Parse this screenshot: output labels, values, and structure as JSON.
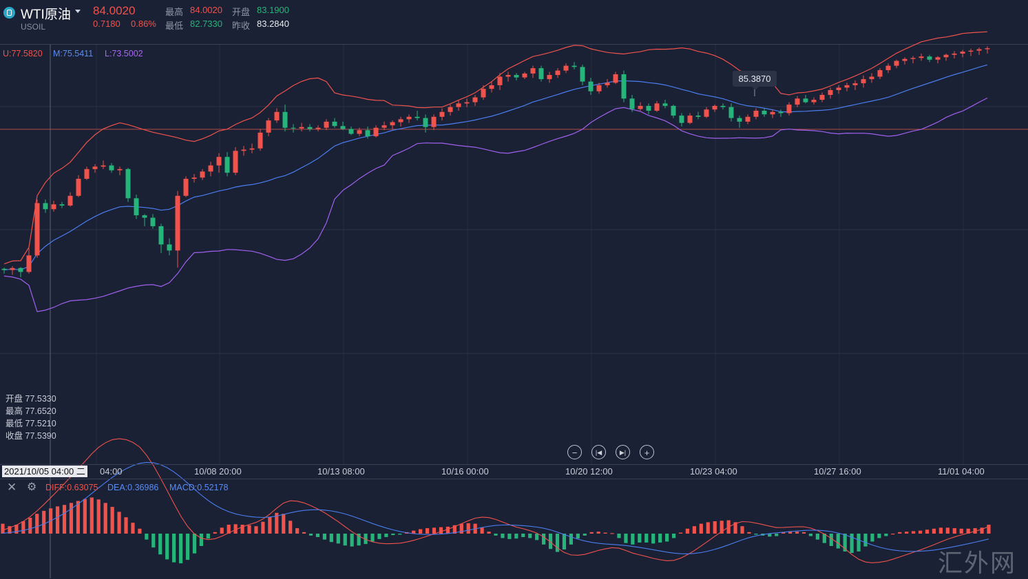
{
  "header": {
    "symbol": "WTI原油",
    "code": "USOIL",
    "price": "84.0020",
    "change": "0.7180",
    "change_pct": "0.86%",
    "high_label": "最高",
    "high": "84.0020",
    "open_label": "开盘",
    "open": "83.1900",
    "low_label": "最低",
    "low": "82.7330",
    "prev_label": "昨收",
    "prev": "83.2840"
  },
  "boll": {
    "upper": "U:77.5820",
    "middle": "M:75.5411",
    "lower": "L:73.5002"
  },
  "ohlc_box": [
    {
      "label": "开盘",
      "value": "77.5330"
    },
    {
      "label": "最高",
      "value": "77.6520"
    },
    {
      "label": "最低",
      "value": "77.5210"
    },
    {
      "label": "收盘",
      "value": "77.5390"
    }
  ],
  "tooltip": "85.3870",
  "cursor_label": "2021/10/05 04:00 二",
  "xaxis_ticks": [
    "04:00",
    "10/08 20:00",
    "10/13 08:00",
    "10/16 00:00",
    "10/20 12:00",
    "10/23 04:00",
    "10/27 16:00",
    "11/01 04:00"
  ],
  "macd": {
    "diff": "DIFF:0.63075",
    "dea": "DEA:0.36986",
    "macd": "MACD:0.52178"
  },
  "watermark": "汇外网",
  "colors": {
    "up": "#f0524c",
    "down": "#26b47a",
    "upper": "#f0524c",
    "middle": "#4a7ef0",
    "lower": "#a060f0",
    "bg": "#1b2134"
  },
  "icons": [
    "logo-icon",
    "caret-down-icon",
    "zoom-out-icon",
    "step-back-icon",
    "step-forward-icon",
    "zoom-in-icon",
    "close-icon",
    "settings-icon"
  ],
  "chart_data": [
    {
      "type": "candlestick",
      "ylim": [
        72.4,
        86.4
      ],
      "candles": [
        [
          77.75,
          77.8,
          77.55,
          77.7
        ],
        [
          77.7,
          77.85,
          77.5,
          77.78
        ],
        [
          77.78,
          77.82,
          77.4,
          77.62
        ],
        [
          77.62,
          78.6,
          77.55,
          78.3
        ],
        [
          78.3,
          80.6,
          78.2,
          80.45
        ],
        [
          80.45,
          80.6,
          80.05,
          80.2
        ],
        [
          80.2,
          80.55,
          80.1,
          80.4
        ],
        [
          80.4,
          80.5,
          80.25,
          80.35
        ],
        [
          80.35,
          80.9,
          80.3,
          80.75
        ],
        [
          80.75,
          81.6,
          80.7,
          81.45
        ],
        [
          81.45,
          81.95,
          81.4,
          81.85
        ],
        [
          81.85,
          82.05,
          81.7,
          81.95
        ],
        [
          81.95,
          82.2,
          81.85,
          82.0
        ],
        [
          82.0,
          82.1,
          81.7,
          81.8
        ],
        [
          81.8,
          81.95,
          81.6,
          81.85
        ],
        [
          81.85,
          81.9,
          80.5,
          80.65
        ],
        [
          80.65,
          80.8,
          79.8,
          79.95
        ],
        [
          79.95,
          80.0,
          79.5,
          79.85
        ],
        [
          79.85,
          80.0,
          79.4,
          79.5
        ],
        [
          79.5,
          79.6,
          78.4,
          78.75
        ],
        [
          78.75,
          79.0,
          78.3,
          78.5
        ],
        [
          78.5,
          80.95,
          77.8,
          80.75
        ],
        [
          80.75,
          81.55,
          80.7,
          81.45
        ],
        [
          81.45,
          81.65,
          81.3,
          81.5
        ],
        [
          81.5,
          81.85,
          81.4,
          81.75
        ],
        [
          81.75,
          82.15,
          81.55,
          82.0
        ],
        [
          82.0,
          82.5,
          81.7,
          82.35
        ],
        [
          82.35,
          82.55,
          81.55,
          81.7
        ],
        [
          81.7,
          82.75,
          81.6,
          82.6
        ],
        [
          82.6,
          82.8,
          82.4,
          82.65
        ],
        [
          82.65,
          82.9,
          82.5,
          82.7
        ],
        [
          82.7,
          83.5,
          82.6,
          83.35
        ],
        [
          83.35,
          83.95,
          83.2,
          83.85
        ],
        [
          83.85,
          84.35,
          83.75,
          84.2
        ],
        [
          84.2,
          84.5,
          83.4,
          83.55
        ],
        [
          83.55,
          83.7,
          83.35,
          83.52
        ],
        [
          83.52,
          83.75,
          83.4,
          83.58
        ],
        [
          83.58,
          83.7,
          83.4,
          83.5
        ],
        [
          83.5,
          83.65,
          83.4,
          83.55
        ],
        [
          83.55,
          83.9,
          83.45,
          83.8
        ],
        [
          83.8,
          83.95,
          83.55,
          83.62
        ],
        [
          83.62,
          83.8,
          83.45,
          83.5
        ],
        [
          83.5,
          83.6,
          83.25,
          83.3
        ],
        [
          83.3,
          83.55,
          83.2,
          83.45
        ],
        [
          83.45,
          83.6,
          83.1,
          83.2
        ],
        [
          83.2,
          83.65,
          83.15,
          83.55
        ],
        [
          83.55,
          83.8,
          83.45,
          83.65
        ],
        [
          83.65,
          83.85,
          83.5,
          83.78
        ],
        [
          83.78,
          84.0,
          83.6,
          83.9
        ],
        [
          83.9,
          84.1,
          83.75,
          84.0
        ],
        [
          84.0,
          84.25,
          83.85,
          83.95
        ],
        [
          83.95,
          84.1,
          83.35,
          83.58
        ],
        [
          83.58,
          84.1,
          83.45,
          84.0
        ],
        [
          84.0,
          84.35,
          83.85,
          84.2
        ],
        [
          84.2,
          84.5,
          84.05,
          84.4
        ],
        [
          84.4,
          84.7,
          84.25,
          84.55
        ],
        [
          84.55,
          84.75,
          84.4,
          84.6
        ],
        [
          84.6,
          84.9,
          84.45,
          84.8
        ],
        [
          84.8,
          85.3,
          84.7,
          85.15
        ],
        [
          85.15,
          85.45,
          85.0,
          85.3
        ],
        [
          85.3,
          85.8,
          85.1,
          85.65
        ],
        [
          85.65,
          85.85,
          85.45,
          85.72
        ],
        [
          85.72,
          85.8,
          85.5,
          85.62
        ],
        [
          85.62,
          85.85,
          85.55,
          85.78
        ],
        [
          85.78,
          86.1,
          85.6,
          86.0
        ],
        [
          86.0,
          86.1,
          85.45,
          85.55
        ],
        [
          85.55,
          85.85,
          85.4,
          85.72
        ],
        [
          85.72,
          86.0,
          85.6,
          85.9
        ],
        [
          85.9,
          86.2,
          85.8,
          86.1
        ],
        [
          86.1,
          86.25,
          85.95,
          86.05
        ],
        [
          86.05,
          86.15,
          85.3,
          85.45
        ],
        [
          85.45,
          85.6,
          84.9,
          85.05
        ],
        [
          85.05,
          85.4,
          84.95,
          85.3
        ],
        [
          85.3,
          85.55,
          85.2,
          85.4
        ],
        [
          85.4,
          85.85,
          85.35,
          85.75
        ],
        [
          85.75,
          85.9,
          84.6,
          84.75
        ],
        [
          84.75,
          84.9,
          84.2,
          84.32
        ],
        [
          84.32,
          84.6,
          84.25,
          84.45
        ],
        [
          84.45,
          84.55,
          84.1,
          84.25
        ],
        [
          84.25,
          84.65,
          84.2,
          84.55
        ],
        [
          84.55,
          84.7,
          84.35,
          84.45
        ],
        [
          84.45,
          84.5,
          83.95,
          84.05
        ],
        [
          84.05,
          84.15,
          83.6,
          83.75
        ],
        [
          83.75,
          84.15,
          83.7,
          84.05
        ],
        [
          84.05,
          84.2,
          83.9,
          84.0
        ],
        [
          84.0,
          84.4,
          83.95,
          84.3
        ],
        [
          84.3,
          84.5,
          84.2,
          84.45
        ],
        [
          84.45,
          84.55,
          84.3,
          84.4
        ],
        [
          84.4,
          84.55,
          83.8,
          83.95
        ],
        [
          83.95,
          84.05,
          83.55,
          83.8
        ],
        [
          83.8,
          84.1,
          83.7,
          84.0
        ],
        [
          84.0,
          84.35,
          83.9,
          84.25
        ],
        [
          84.25,
          84.35,
          84.0,
          84.1
        ],
        [
          84.1,
          84.3,
          83.95,
          84.2
        ],
        [
          84.2,
          84.3,
          84.0,
          84.15
        ],
        [
          84.15,
          84.6,
          84.05,
          84.5
        ],
        [
          84.5,
          84.85,
          84.4,
          84.75
        ],
        [
          84.75,
          84.9,
          84.55,
          84.6
        ],
        [
          84.6,
          84.8,
          84.5,
          84.7
        ],
        [
          84.7,
          85.0,
          84.6,
          84.9
        ],
        [
          84.9,
          85.2,
          84.75,
          85.1
        ],
        [
          85.1,
          85.3,
          84.95,
          85.2
        ],
        [
          85.2,
          85.4,
          85.05,
          85.3
        ],
        [
          85.3,
          85.5,
          85.1,
          85.38
        ],
        [
          85.38,
          85.7,
          85.2,
          85.55
        ],
        [
          85.55,
          85.8,
          85.4,
          85.65
        ],
        [
          85.65,
          86.0,
          85.55,
          85.92
        ],
        [
          85.92,
          86.2,
          85.8,
          86.1
        ],
        [
          86.1,
          86.35,
          86.0,
          86.3
        ],
        [
          86.3,
          86.45,
          86.15,
          86.38
        ],
        [
          86.38,
          86.5,
          86.2,
          86.42
        ],
        [
          86.42,
          86.6,
          86.3,
          86.48
        ],
        [
          86.48,
          86.55,
          86.25,
          86.35
        ],
        [
          86.35,
          86.5,
          86.2,
          86.45
        ],
        [
          86.45,
          86.6,
          86.3,
          86.55
        ],
        [
          86.55,
          86.7,
          86.4,
          86.6
        ],
        [
          86.6,
          86.75,
          86.45,
          86.68
        ],
        [
          86.68,
          86.8,
          86.5,
          86.72
        ],
        [
          86.72,
          86.85,
          86.55,
          86.78
        ],
        [
          86.78,
          86.9,
          86.6,
          86.82
        ]
      ]
    },
    {
      "type": "bar",
      "name": "MACD",
      "values": [
        2,
        1.5,
        1.8,
        2.5,
        3.2,
        4,
        4.6,
        5.1,
        5.5,
        5.8,
        6.2,
        6.6,
        7.0,
        7.3,
        6.9,
        6.2,
        5.4,
        4.4,
        3.3,
        2.2,
        1,
        -1.2,
        -2.8,
        -4.2,
        -5.2,
        -5.8,
        -6,
        -5.3,
        -4,
        -2.5,
        -1,
        0.3,
        1.2,
        1.8,
        1.9,
        1.8,
        1.7,
        1.5,
        2.4,
        3.4,
        4.2,
        4.0,
        2.6,
        1.1,
        0.3,
        -0.4,
        -0.7,
        -1.2,
        -1.7,
        -2.0,
        -2.4,
        -2.6,
        -2.4,
        -2.1,
        -1.6,
        -1.1,
        -0.7,
        -0.3,
        -0.2,
        0.3,
        0.6,
        0.9,
        1.1,
        1.2,
        1.3,
        1.4,
        1.7,
        2.0,
        2.1,
        2.0,
        1.2,
        0.4,
        -0.4,
        -0.9,
        -1.1,
        -1.0,
        -0.7,
        -0.9,
        -1.3,
        -2.2,
        -3.1,
        -3.7,
        -3.2,
        -2.2,
        -1.0,
        -0.4,
        0.3,
        0.4,
        0.2,
        0.1,
        -0.9,
        -1.9,
        -2.2,
        -1.8,
        -1.8,
        -2.0,
        -1.8,
        -1.6,
        -0.9,
        0.2,
        1.0,
        1.5,
        2.0,
        2.3,
        2.5,
        2.6,
        2.7,
        2.3,
        1.5,
        0.3,
        -0.2,
        -0.4,
        -0.6,
        -0.5,
        0.3,
        0.5,
        0.4,
        0.3,
        -0.5,
        -1.2,
        -1.9,
        -2.5,
        -3.0,
        -3.6,
        -3.9,
        -3.6,
        -2.6,
        -1.6,
        -0.9,
        -0.5,
        0.0,
        0.3,
        0.4,
        0.5,
        0.6,
        0.8,
        1.0,
        1.2,
        1.2,
        1.1,
        1.0,
        1.0,
        1.1,
        1.2,
        1.8
      ]
    }
  ]
}
